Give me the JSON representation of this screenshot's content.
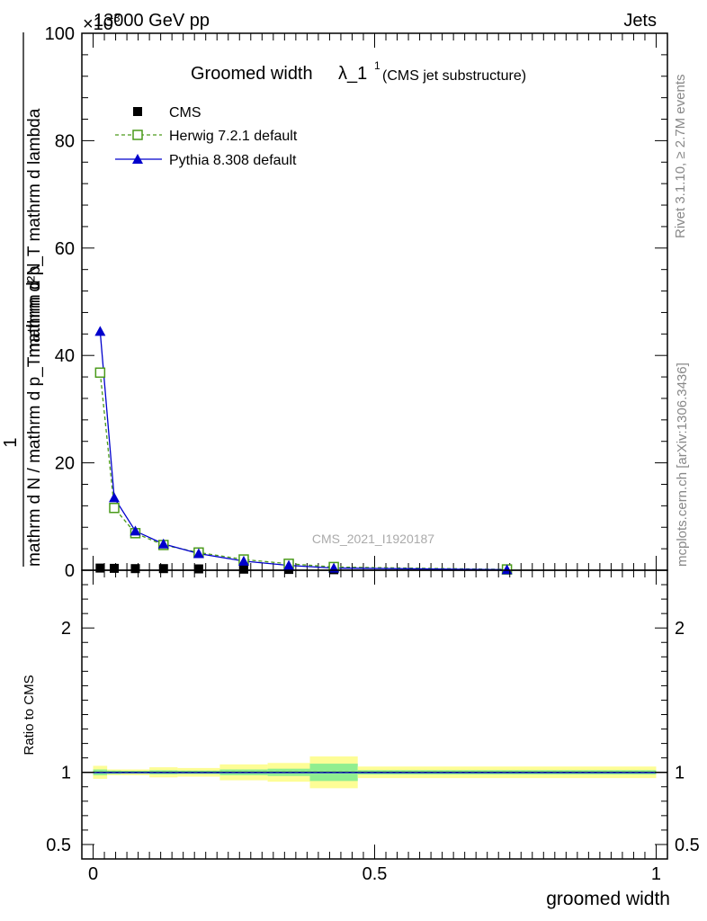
{
  "header": {
    "left": "13000 GeV pp",
    "right": "Jets",
    "exponent": "×10",
    "exponent_power": "-3"
  },
  "side_labels": {
    "rivet": "Rivet 3.1.10, ≥ 2.7M events",
    "mcplots": "mcplots.cern.ch [arXiv:1306.3436]"
  },
  "watermark": "CMS_2021_I1920187",
  "chart_data": [
    {
      "type": "line",
      "title": "Groomed width",
      "title_symbol": "λ_1",
      "title_sup": "1",
      "subtitle": "(CMS jet substructure)",
      "ylabel_num": "mathrm d²N",
      "ylabel_den": "mathrm d N / mathrm d p_T mathrm d p_T mathrm d lambda",
      "ylabel_one": "1",
      "ylim": [
        0,
        100
      ],
      "yticks": [
        0,
        20,
        40,
        60,
        80,
        100
      ],
      "ytick_labels": [
        "0",
        "20",
        "40",
        "60",
        "80",
        "100"
      ],
      "xlim": [
        -0.02,
        1.02
      ],
      "legend_position": "top-left",
      "series": [
        {
          "name": "CMS",
          "marker": "square-filled",
          "color": "#000000",
          "x": [
            0.0125,
            0.0375,
            0.075,
            0.125,
            0.1875,
            0.2675,
            0.3475,
            0.4275,
            0.735
          ],
          "values": [
            0.4,
            0.35,
            0.3,
            0.3,
            0.25,
            0.2,
            0.15,
            0.1,
            0.05
          ]
        },
        {
          "name": "Herwig 7.2.1 default",
          "marker": "square-open",
          "color": "#4a9a1a",
          "x": [
            0.0125,
            0.0375,
            0.075,
            0.125,
            0.1875,
            0.2675,
            0.3475,
            0.4275,
            0.735
          ],
          "values": [
            36.8,
            11.6,
            6.9,
            4.7,
            3.3,
            2.0,
            1.2,
            0.6,
            0.15
          ]
        },
        {
          "name": "Pythia 8.308 default",
          "marker": "triangle-filled",
          "color": "#0000cc",
          "x": [
            0.0125,
            0.0375,
            0.075,
            0.125,
            0.1875,
            0.2675,
            0.3475,
            0.4275,
            0.735
          ],
          "values": [
            44.5,
            13.5,
            7.3,
            4.9,
            3.1,
            1.7,
            0.9,
            0.4,
            0.1
          ]
        }
      ]
    },
    {
      "type": "line",
      "ylabel": "Ratio to CMS",
      "xlabel": "groomed width",
      "ylim": [
        0.4,
        2.4
      ],
      "yticks": [
        0.5,
        1,
        2
      ],
      "ytick_labels": [
        "0.5",
        "1",
        "2"
      ],
      "xlim": [
        -0.02,
        1.02
      ],
      "xticks": [
        0,
        0.5,
        1
      ],
      "xtick_labels": [
        "0",
        "0.5",
        "1"
      ],
      "reference": 1,
      "bins": [
        0.0,
        0.025,
        0.05,
        0.1,
        0.15,
        0.225,
        0.31,
        0.385,
        0.47,
        1.0
      ],
      "stat_band": [
        0.02,
        0.012,
        0.01,
        0.014,
        0.012,
        0.02,
        0.025,
        0.06,
        0.015
      ],
      "total_band": [
        0.045,
        0.02,
        0.02,
        0.035,
        0.03,
        0.055,
        0.065,
        0.11,
        0.04
      ]
    }
  ]
}
